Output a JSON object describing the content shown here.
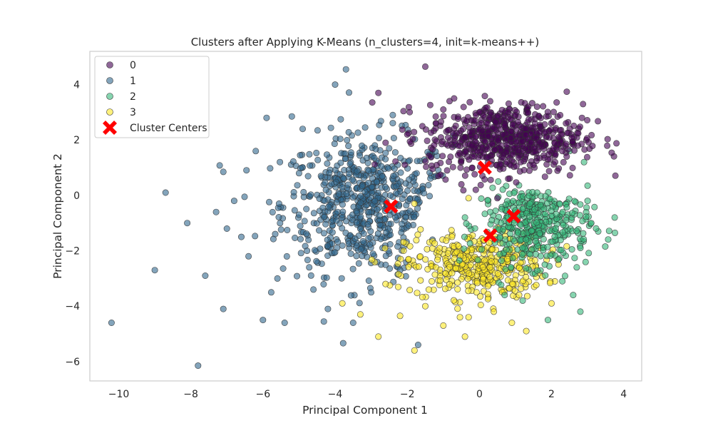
{
  "chart_data": {
    "type": "scatter",
    "title": "Clusters after Applying K-Means (n_clusters=4, init=k-means++)",
    "xlabel": "Principal Component 1",
    "ylabel": "Principal Component 2",
    "xlim": [
      -10.8,
      4.5
    ],
    "ylim": [
      -6.7,
      5.2
    ],
    "xticks": [
      -10,
      -8,
      -6,
      -4,
      -2,
      0,
      2,
      4
    ],
    "yticks": [
      -6,
      -4,
      -2,
      0,
      2,
      4
    ],
    "xtick_labels": [
      "−10",
      "−8",
      "−6",
      "−4",
      "−2",
      "0",
      "2",
      "4"
    ],
    "ytick_labels": [
      "−6",
      "−4",
      "−2",
      "0",
      "2",
      "4"
    ],
    "grid": false,
    "legend_position": "top-left",
    "series": [
      {
        "name": "0",
        "color": "#440154",
        "points": [
          [
            -1.5,
            4.65
          ],
          [
            -0.7,
            3.5
          ],
          [
            0.3,
            3.4
          ],
          [
            1.6,
            3.2
          ],
          [
            2.2,
            2.1
          ],
          [
            2.3,
            1.6
          ],
          [
            2.1,
            1.2
          ],
          [
            -1.2,
            2.6
          ],
          [
            -2.0,
            2.2
          ],
          [
            -2.6,
            1.9
          ],
          [
            -0.2,
            1.0
          ],
          [
            0.8,
            0.6
          ],
          [
            -0.5,
            0.4
          ],
          [
            1.5,
            1.1
          ],
          [
            1.9,
            1.3
          ],
          [
            -2.8,
            3.7
          ],
          [
            -1.0,
            3.1
          ],
          [
            0.0,
            3.0
          ],
          [
            1.0,
            2.9
          ],
          [
            2.4,
            2.6
          ],
          [
            -0.1,
            0.2
          ],
          [
            0.5,
            -0.1
          ]
        ],
        "blob": {
          "cx": 0.7,
          "cy": 2.05,
          "rx": 1.75,
          "ry": 1.0,
          "count": 620,
          "clip": "none"
        }
      },
      {
        "name": "1",
        "color": "#31688e",
        "points": [
          [
            -10.2,
            -4.6
          ],
          [
            -9.0,
            -2.7
          ],
          [
            -8.7,
            0.1
          ],
          [
            -8.1,
            -1.0
          ],
          [
            -7.8,
            -6.15
          ],
          [
            -7.1,
            0.85
          ],
          [
            -7.6,
            -2.9
          ],
          [
            -7.1,
            -4.1
          ],
          [
            -6.2,
            1.6
          ],
          [
            -6.6,
            -1.5
          ],
          [
            -5.9,
            2.8
          ],
          [
            -5.2,
            2.85
          ],
          [
            -4.0,
            4.0
          ],
          [
            -3.7,
            4.55
          ],
          [
            -3.5,
            -4.6
          ],
          [
            -1.7,
            -5.4
          ],
          [
            -4.6,
            -3.4
          ],
          [
            -5.4,
            -4.6
          ],
          [
            -6.0,
            -4.5
          ],
          [
            -2.4,
            2.9
          ],
          [
            -4.9,
            2.4
          ],
          [
            -5.6,
            -3.0
          ],
          [
            -6.4,
            -2.2
          ],
          [
            -7.3,
            -0.6
          ],
          [
            -5.0,
            0.8
          ],
          [
            -3.0,
            -3.5
          ],
          [
            -2.2,
            -2.7
          ],
          [
            -1.3,
            -1.6
          ],
          [
            -4.2,
            -4.1
          ],
          [
            -7.0,
            -1.2
          ],
          [
            -6.8,
            -0.2
          ]
        ],
        "blob": {
          "cx": -3.1,
          "cy": -0.35,
          "rx": 1.9,
          "ry": 2.0,
          "count": 620,
          "clip": "west"
        }
      },
      {
        "name": "2",
        "color": "#35b779",
        "points": [
          [
            3.75,
            -0.8
          ],
          [
            3.0,
            0.35
          ],
          [
            2.9,
            1.2
          ],
          [
            2.5,
            1.6
          ],
          [
            2.8,
            -4.2
          ],
          [
            1.9,
            -4.5
          ],
          [
            1.2,
            -3.8
          ],
          [
            0.7,
            -3.6
          ],
          [
            3.1,
            -1.0
          ],
          [
            2.7,
            -2.6
          ],
          [
            2.6,
            -3.6
          ],
          [
            -0.4,
            -0.8
          ],
          [
            1.4,
            -0.3
          ],
          [
            2.8,
            -1.9
          ],
          [
            3.0,
            -0.2
          ],
          [
            2.3,
            -3.1
          ],
          [
            0.3,
            -0.6
          ]
        ],
        "blob": {
          "cx": 1.55,
          "cy": -1.05,
          "rx": 1.2,
          "ry": 1.2,
          "count": 380,
          "clip": "south-east"
        }
      },
      {
        "name": "3",
        "color": "#fde725",
        "points": [
          [
            -1.8,
            -5.6
          ],
          [
            -2.8,
            -5.1
          ],
          [
            -0.4,
            -5.1
          ],
          [
            0.9,
            -4.6
          ],
          [
            1.3,
            -4.9
          ],
          [
            -2.2,
            -4.35
          ],
          [
            -3.3,
            -4.3
          ],
          [
            -3.8,
            -3.9
          ],
          [
            -1.0,
            -4.7
          ],
          [
            -0.3,
            -4.4
          ],
          [
            2.0,
            -3.9
          ],
          [
            1.1,
            -3.6
          ],
          [
            -2.6,
            -3.2
          ],
          [
            -1.5,
            -4.0
          ],
          [
            -2.1,
            -2.0
          ],
          [
            -1.8,
            -0.3
          ],
          [
            -0.3,
            -0.1
          ],
          [
            0.4,
            -4.2
          ]
        ],
        "blob": {
          "cx": -0.1,
          "cy": -2.55,
          "rx": 1.55,
          "ry": 0.95,
          "count": 380,
          "clip": "none"
        }
      },
      {
        "name": "Cluster Centers",
        "color": "#ff0000",
        "marker": "X",
        "points": [
          [
            0.15,
            1.0
          ],
          [
            -2.45,
            -0.4
          ],
          [
            0.95,
            -0.75
          ],
          [
            0.3,
            -1.45
          ]
        ]
      }
    ]
  }
}
